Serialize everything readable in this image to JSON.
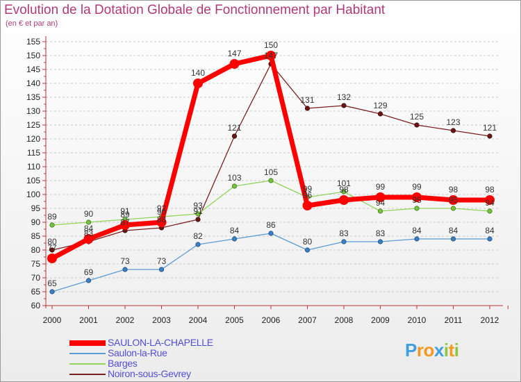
{
  "chart_data": {
    "type": "line",
    "title": "Evolution de la Dotation Globale de Fonctionnement par Habitant",
    "subtitle": "(en € et par an)",
    "x": [
      "2000",
      "2001",
      "2002",
      "2003",
      "2004",
      "2005",
      "2006",
      "2007",
      "2008",
      "2009",
      "2010",
      "2011",
      "2012"
    ],
    "ylim": [
      60,
      155
    ],
    "ytick_step": 5,
    "grid": "horizontal dashed",
    "legend_position": "bottom-left",
    "series": [
      {
        "name": "SAULON-LA-CHAPELLE",
        "color": "#ff0000",
        "values": [
          77,
          84,
          89,
          90,
          140,
          147,
          150,
          96,
          98,
          99,
          99,
          98,
          98
        ],
        "labels": [
          "77",
          "84",
          "89",
          "90",
          "140",
          "147",
          "150",
          "96",
          "98",
          "99",
          "99",
          "98",
          "98"
        ]
      },
      {
        "name": "Saulon-la-Rue",
        "color": "#5b9bd5",
        "values": [
          65,
          69,
          73,
          73,
          82,
          84,
          86,
          80,
          83,
          83,
          84,
          84,
          84
        ],
        "labels": [
          "65",
          "69",
          "73",
          "73",
          "82",
          "84",
          "86",
          "80",
          "83",
          "83",
          "84",
          "84",
          "84"
        ]
      },
      {
        "name": "Barges",
        "color": "#90d45a",
        "values": [
          89,
          90,
          91,
          92,
          93,
          103,
          105,
          99,
          101,
          94,
          95,
          95,
          94
        ],
        "labels": [
          "89",
          "90",
          "91",
          "92",
          "93",
          "103",
          "105",
          "99",
          "101",
          "94",
          "95",
          "95",
          "94"
        ]
      },
      {
        "name": "Noiron-sous-Gevrey",
        "color": "#7a1f1f",
        "values": [
          80,
          83,
          87,
          88,
          91,
          121,
          147,
          131,
          132,
          129,
          125,
          123,
          121
        ],
        "labels": [
          "80",
          "83",
          "87",
          "88",
          "91",
          "121",
          "147",
          "131",
          "132",
          "129",
          "125",
          "123",
          "121"
        ]
      }
    ]
  },
  "logo": {
    "letters": [
      "P",
      "r",
      "o",
      "x",
      "i",
      "t",
      "i"
    ],
    "colors": [
      "#3da0e0",
      "#f39a1e",
      "#f39a1e",
      "#3da0e0",
      "#8cc63f",
      "#f39a1e",
      "#8cc63f"
    ]
  }
}
